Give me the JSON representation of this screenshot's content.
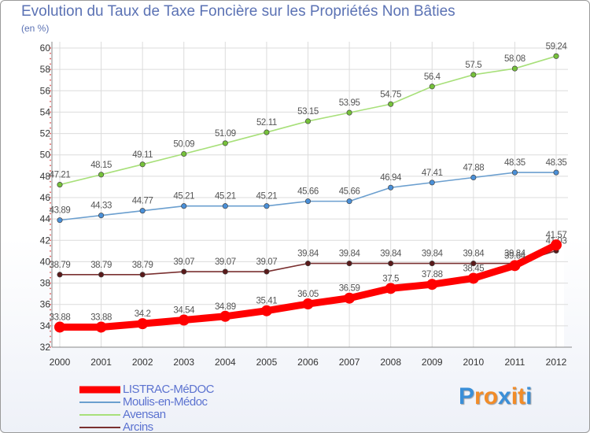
{
  "chart_data": {
    "type": "line",
    "title": "Evolution du Taux de Taxe Foncière sur les Propriétés Non Bâties",
    "subtitle": "(en %)",
    "x": [
      "2000",
      "2001",
      "2002",
      "2003",
      "2004",
      "2005",
      "2006",
      "2007",
      "2008",
      "2009",
      "2010",
      "2011",
      "2012"
    ],
    "ylim": [
      32,
      60
    ],
    "yticks": [
      32,
      34,
      36,
      38,
      40,
      42,
      44,
      46,
      48,
      50,
      52,
      54,
      56,
      58,
      60
    ],
    "grid": true,
    "legend_position": "bottom-left",
    "series": [
      {
        "name": "LISTRAC-MéDOC",
        "color": "#ff0000",
        "marker_color": "#ff0000",
        "values": [
          33.88,
          33.88,
          34.2,
          34.54,
          34.89,
          35.41,
          36.05,
          36.59,
          37.5,
          37.88,
          38.45,
          39.64,
          41.57
        ],
        "labels": [
          "33.88",
          "33.88",
          "34.2",
          "34.54",
          "34.89",
          "35.41",
          "36.05",
          "36.59",
          "37.5",
          "37.88",
          "38.45",
          "39.64",
          "41.57"
        ]
      },
      {
        "name": "Moulis-en-Médoc",
        "color": "#6b9fcf",
        "marker_color": "#4a90d9",
        "values": [
          43.89,
          44.33,
          44.77,
          45.21,
          45.21,
          45.21,
          45.66,
          45.66,
          46.94,
          47.41,
          47.88,
          48.35,
          48.35
        ],
        "labels": [
          "43.89",
          "44.33",
          "44.77",
          "45.21",
          "45.21",
          "45.21",
          "45.66",
          "45.66",
          "46.94",
          "47.41",
          "47.88",
          "48.35",
          "48.35"
        ]
      },
      {
        "name": "Avensan",
        "color": "#a8e07a",
        "marker_color": "#76c23a",
        "values": [
          47.21,
          48.15,
          49.11,
          50.09,
          51.09,
          52.11,
          53.15,
          53.95,
          54.75,
          56.4,
          57.5,
          58.08,
          59.24
        ],
        "labels": [
          "47.21",
          "48.15",
          "49.11",
          "50.09",
          "51.09",
          "52.11",
          "53.15",
          "53.95",
          "54.75",
          "56.4",
          "57.5",
          "58.08",
          "59.24"
        ]
      },
      {
        "name": "Arcins",
        "color": "#7a3030",
        "marker_color": "#5a1a1a",
        "values": [
          38.79,
          38.79,
          38.79,
          39.07,
          39.07,
          39.07,
          39.84,
          39.84,
          39.84,
          39.84,
          39.84,
          39.84,
          41.03
        ],
        "labels": [
          "38.79",
          "38.79",
          "38.79",
          "39.07",
          "39.07",
          "39.07",
          "39.84",
          "39.84",
          "39.84",
          "39.84",
          "39.84",
          "39.84",
          "41.03"
        ]
      }
    ]
  },
  "logo": {
    "text": "Proxiti",
    "colors": [
      "#3a8fd8",
      "#f28c28",
      "#f28c28",
      "#3a8fd8",
      "#f28c28",
      "#f28c28",
      "#3a8fd8"
    ]
  }
}
